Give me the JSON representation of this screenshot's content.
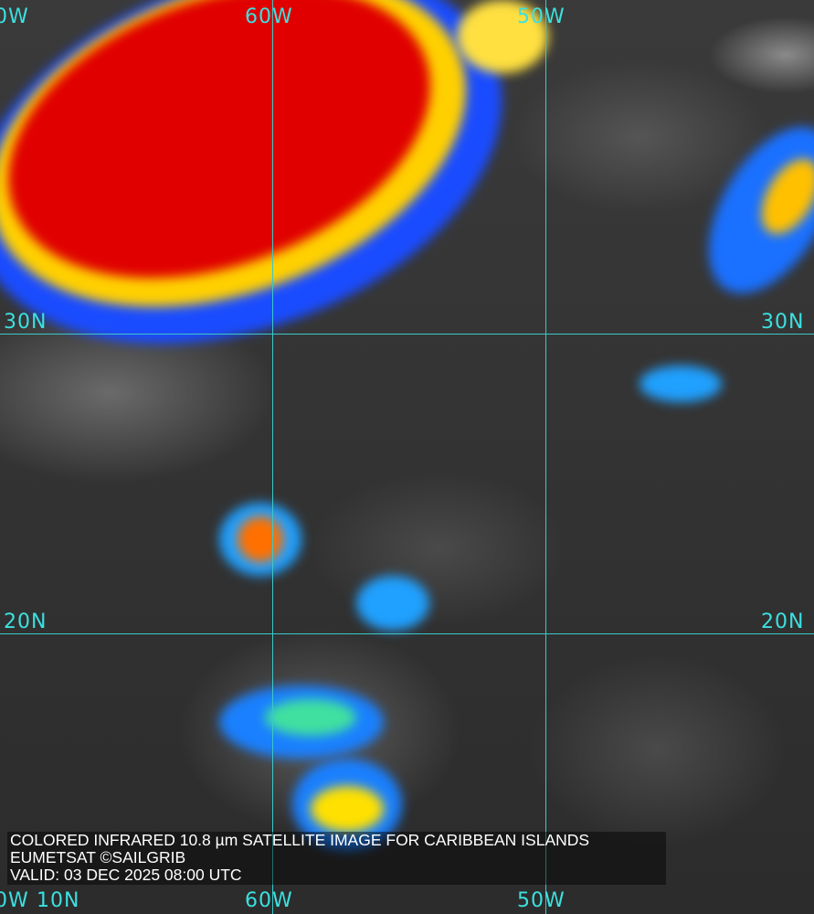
{
  "map": {
    "longitude_labels_top": [
      "0W",
      "60W",
      "50W"
    ],
    "longitude_labels_bottom": [
      "0W",
      "60W",
      "50W"
    ],
    "latitude_labels_right": [
      "30N",
      "20N"
    ],
    "latitude_labels_left": [
      "30N",
      "20N",
      "10N"
    ],
    "colors": {
      "grid": "#3cc8c8",
      "cold_tops": "#e00000",
      "mid_tops": "#ffe000",
      "warm_tops": "#00a0ff",
      "edge": "#0000c8"
    }
  },
  "caption": {
    "line1": "COLORED INFRARED 10.8 µm SATELLITE IMAGE FOR CARIBBEAN ISLANDS",
    "line2": "EUMETSAT ©SAILGRIB",
    "line3": "VALID:  03 DEC 2025 08:00 UTC"
  }
}
